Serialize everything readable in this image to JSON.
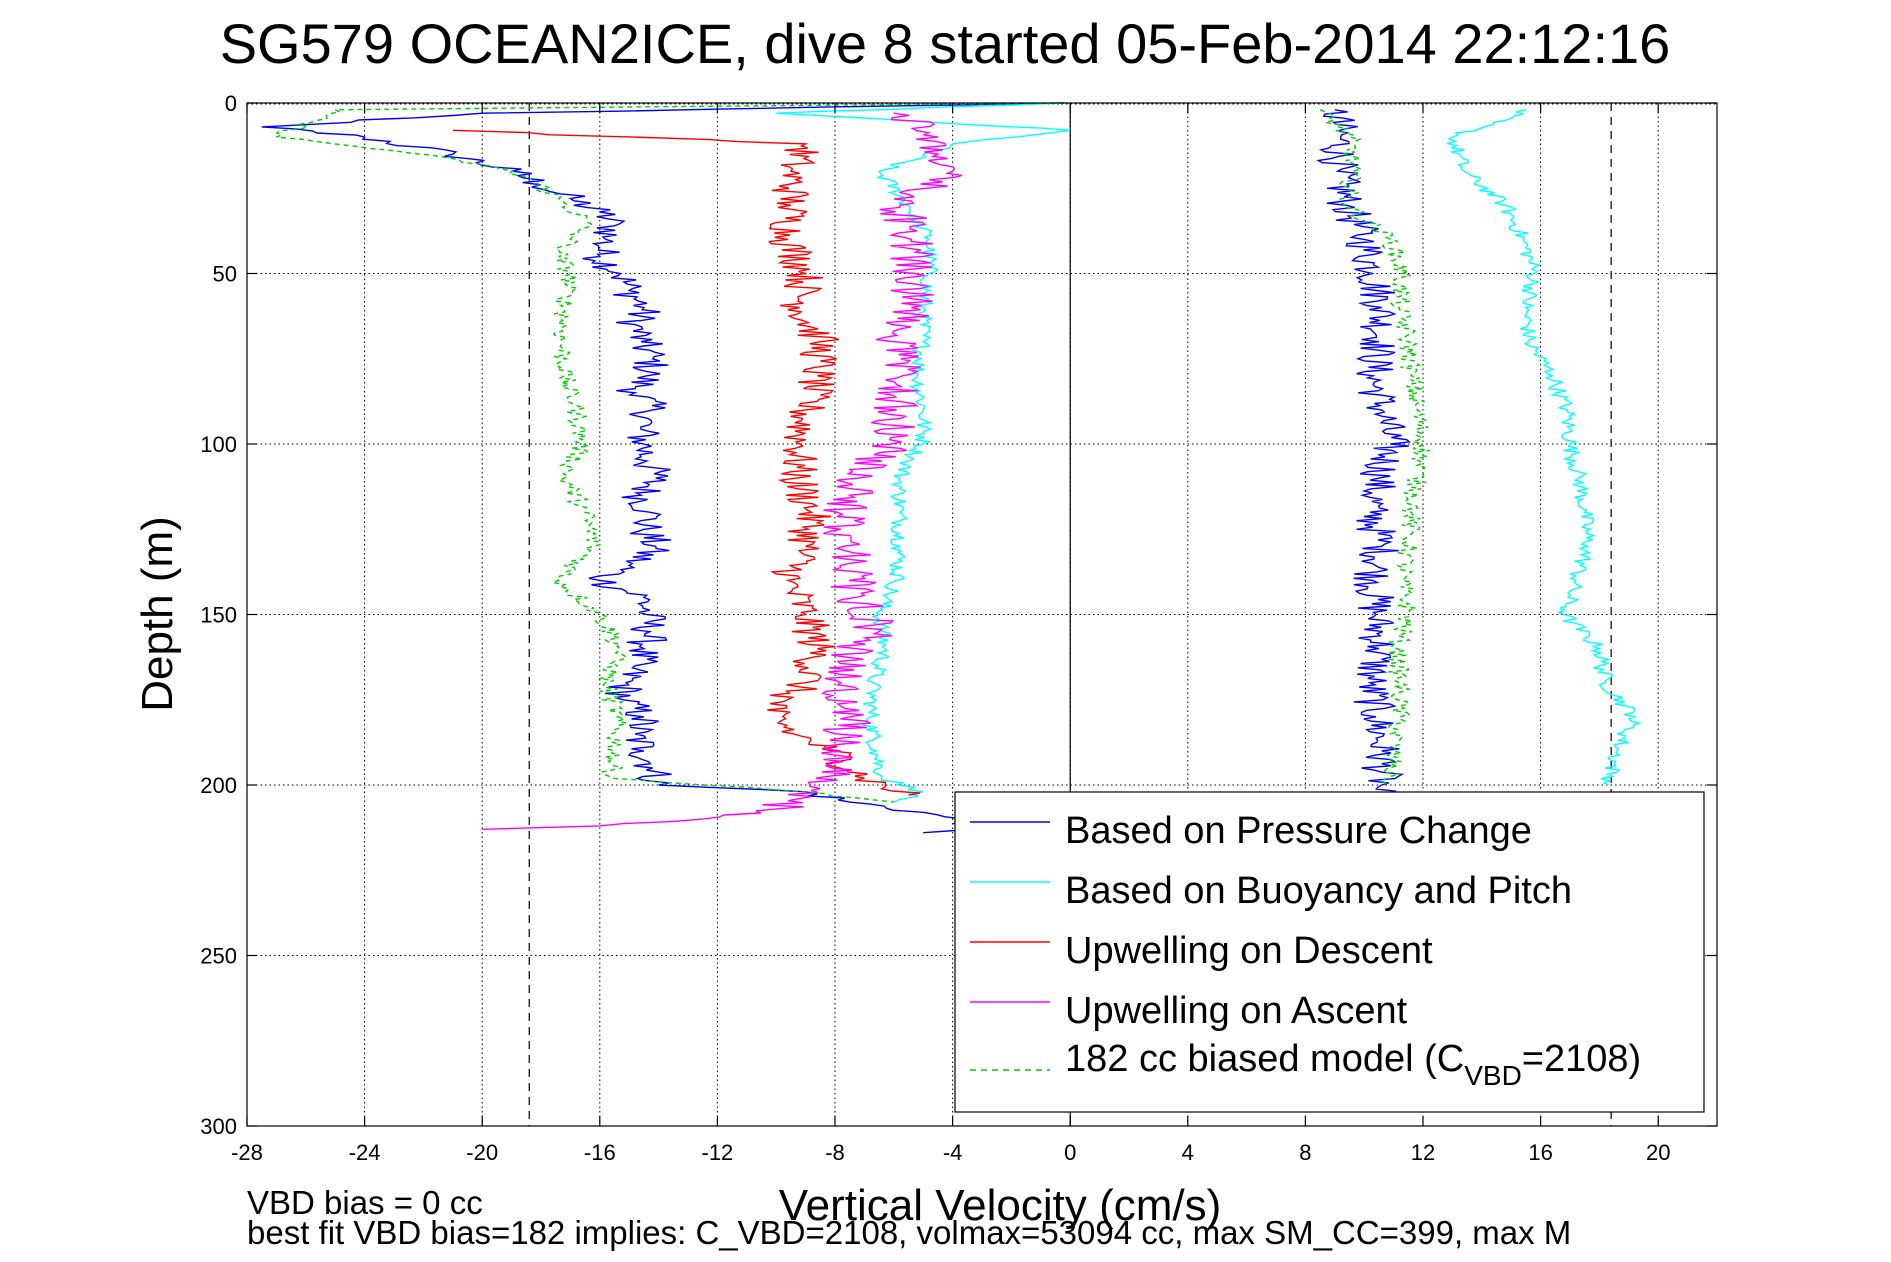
{
  "chart_data": {
    "type": "line",
    "title": "SG579 OCEAN2ICE, dive 8 started 05-Feb-2014 22:12:16",
    "xlabel": "Vertical Velocity (cm/s)",
    "ylabel": "Depth (m)",
    "xlim": [
      -28,
      22
    ],
    "ylim": [
      0,
      300
    ],
    "y_reversed": true,
    "xticks": [
      -28,
      -24,
      -20,
      -16,
      -12,
      -8,
      -4,
      0,
      4,
      8,
      12,
      16,
      20
    ],
    "yticks": [
      0,
      50,
      100,
      150,
      200,
      250,
      300
    ],
    "grid": true,
    "legend_position": "lower-right",
    "reference_lines": {
      "vertical_solid": [
        0
      ],
      "vertical_dashed": [
        -18.4,
        18.4
      ]
    },
    "series": [
      {
        "name": "Based on Pressure Change",
        "color": "#0000ff",
        "dashed": false,
        "points": [
          [
            -0.2,
            0
          ],
          [
            -20,
            3
          ],
          [
            -27.5,
            7
          ],
          [
            -24,
            10
          ],
          [
            -21,
            15
          ],
          [
            -19,
            20
          ],
          [
            -18,
            24
          ],
          [
            -17,
            28
          ],
          [
            -16,
            32
          ],
          [
            -15.5,
            36
          ],
          [
            -15.8,
            40
          ],
          [
            -16,
            45
          ],
          [
            -15.3,
            50
          ],
          [
            -15,
            55
          ],
          [
            -14.5,
            60
          ],
          [
            -14.8,
            65
          ],
          [
            -14.6,
            70
          ],
          [
            -14.2,
            75
          ],
          [
            -14.4,
            80
          ],
          [
            -14.8,
            85
          ],
          [
            -14.2,
            90
          ],
          [
            -14.6,
            95
          ],
          [
            -14.5,
            100
          ],
          [
            -14.4,
            105
          ],
          [
            -14.1,
            110
          ],
          [
            -14.6,
            115
          ],
          [
            -14.3,
            120
          ],
          [
            -14.5,
            125
          ],
          [
            -14.1,
            130
          ],
          [
            -14.9,
            135
          ],
          [
            -16,
            140
          ],
          [
            -14.5,
            145
          ],
          [
            -14.4,
            150
          ],
          [
            -14.3,
            155
          ],
          [
            -14.5,
            160
          ],
          [
            -14.8,
            165
          ],
          [
            -15.1,
            170
          ],
          [
            -15.2,
            175
          ],
          [
            -14.5,
            180
          ],
          [
            -14.8,
            185
          ],
          [
            -14.5,
            190
          ],
          [
            -14.2,
            195
          ],
          [
            -14,
            200
          ],
          [
            -9,
            202
          ],
          [
            -7.5,
            205
          ],
          [
            -5,
            208
          ],
          [
            -3,
            212
          ],
          [
            -5,
            214
          ]
        ],
        "ascent_points": [
          [
            9,
            2
          ],
          [
            9.2,
            10
          ],
          [
            9.1,
            20
          ],
          [
            9.4,
            30
          ],
          [
            10,
            40
          ],
          [
            10.3,
            50
          ],
          [
            10.6,
            60
          ],
          [
            10.5,
            70
          ],
          [
            10.3,
            80
          ],
          [
            10.6,
            90
          ],
          [
            10.9,
            100
          ],
          [
            10.5,
            110
          ],
          [
            10.2,
            120
          ],
          [
            10.6,
            130
          ],
          [
            10.3,
            140
          ],
          [
            10.4,
            150
          ],
          [
            10.5,
            160
          ],
          [
            10.2,
            170
          ],
          [
            10.4,
            180
          ],
          [
            10.6,
            190
          ],
          [
            10.6,
            200
          ],
          [
            10.2,
            203
          ]
        ]
      },
      {
        "name": "Based on Buoyancy and Pitch",
        "color": "#00ffff",
        "dashed": false,
        "points": [
          [
            -0.2,
            0
          ],
          [
            -10,
            3
          ],
          [
            0,
            8
          ],
          [
            -4,
            12
          ],
          [
            -6.5,
            20
          ],
          [
            -5.5,
            30
          ],
          [
            -4.8,
            40
          ],
          [
            -4.8,
            50
          ],
          [
            -5,
            60
          ],
          [
            -5,
            70
          ],
          [
            -5.2,
            80
          ],
          [
            -5,
            90
          ],
          [
            -5,
            100
          ],
          [
            -5.5,
            105
          ],
          [
            -5.8,
            110
          ],
          [
            -5.8,
            120
          ],
          [
            -5.8,
            130
          ],
          [
            -5.9,
            140
          ],
          [
            -6.5,
            150
          ],
          [
            -6.3,
            160
          ],
          [
            -6.7,
            170
          ],
          [
            -6.8,
            180
          ],
          [
            -6.6,
            190
          ],
          [
            -6.4,
            198
          ],
          [
            -5,
            202
          ],
          [
            -6,
            205
          ]
        ],
        "ascent_points": [
          [
            15.5,
            2
          ],
          [
            13,
            10
          ],
          [
            13.4,
            20
          ],
          [
            14.8,
            30
          ],
          [
            15.4,
            40
          ],
          [
            15.8,
            50
          ],
          [
            15.5,
            60
          ],
          [
            15.6,
            70
          ],
          [
            16.4,
            80
          ],
          [
            16.9,
            90
          ],
          [
            17,
            100
          ],
          [
            17.3,
            110
          ],
          [
            17.5,
            120
          ],
          [
            17.6,
            130
          ],
          [
            17.2,
            140
          ],
          [
            16.8,
            150
          ],
          [
            18,
            160
          ],
          [
            18.2,
            170
          ],
          [
            19.2,
            180
          ],
          [
            18.6,
            190
          ],
          [
            18.3,
            200
          ]
        ]
      },
      {
        "name": "Upwelling on Descent",
        "color": "#ff0000",
        "dashed": false,
        "points": [
          [
            -21,
            8
          ],
          [
            -9,
            12
          ],
          [
            -9.5,
            20
          ],
          [
            -9.5,
            30
          ],
          [
            -9.6,
            40
          ],
          [
            -9,
            50
          ],
          [
            -9.2,
            60
          ],
          [
            -8.5,
            70
          ],
          [
            -8.6,
            80
          ],
          [
            -9,
            90
          ],
          [
            -9.2,
            100
          ],
          [
            -9.3,
            110
          ],
          [
            -8.8,
            120
          ],
          [
            -9,
            130
          ],
          [
            -9.6,
            140
          ],
          [
            -9,
            150
          ],
          [
            -8.6,
            160
          ],
          [
            -9,
            170
          ],
          [
            -10.3,
            178
          ],
          [
            -9.4,
            185
          ],
          [
            -8.1,
            190
          ],
          [
            -7,
            198
          ],
          [
            -5.5,
            203
          ]
        ]
      },
      {
        "name": "Upwelling on Ascent",
        "color": "#ff00ff",
        "dashed": false,
        "points": [
          [
            -20,
            213
          ],
          [
            -16,
            212
          ],
          [
            -12.5,
            210
          ],
          [
            -10,
            207
          ],
          [
            -9.2,
            204
          ],
          [
            -8.5,
            201
          ],
          [
            -8.1,
            195
          ],
          [
            -7.8,
            190
          ],
          [
            -7.5,
            180
          ],
          [
            -7.8,
            170
          ],
          [
            -7.3,
            160
          ],
          [
            -6.5,
            155
          ],
          [
            -7.3,
            145
          ],
          [
            -7.5,
            135
          ],
          [
            -7.8,
            125
          ],
          [
            -7.5,
            115
          ],
          [
            -7.2,
            110
          ],
          [
            -6.1,
            100
          ],
          [
            -5.9,
            90
          ],
          [
            -5.7,
            80
          ],
          [
            -6,
            70
          ],
          [
            -5.4,
            60
          ],
          [
            -5.3,
            50
          ],
          [
            -5.4,
            40
          ],
          [
            -5.8,
            30
          ],
          [
            -4,
            20
          ],
          [
            -4.5,
            10
          ],
          [
            -6,
            3
          ]
        ]
      },
      {
        "name": "182 cc biased model (C_VBD=2108)",
        "color": "#00cc00",
        "dashed": true,
        "points": [
          [
            -0.2,
            0
          ],
          [
            -25,
            2
          ],
          [
            -27,
            10
          ],
          [
            -23,
            14
          ],
          [
            -20,
            18
          ],
          [
            -18.4,
            22
          ],
          [
            -17.4,
            28
          ],
          [
            -16.4,
            35
          ],
          [
            -17,
            40
          ],
          [
            -17.4,
            45
          ],
          [
            -17,
            50
          ],
          [
            -17.2,
            60
          ],
          [
            -17.3,
            70
          ],
          [
            -17.2,
            80
          ],
          [
            -16.8,
            90
          ],
          [
            -16.6,
            100
          ],
          [
            -17.2,
            110
          ],
          [
            -16.5,
            120
          ],
          [
            -16.2,
            130
          ],
          [
            -17.4,
            140
          ],
          [
            -16,
            150
          ],
          [
            -15.3,
            160
          ],
          [
            -15.8,
            170
          ],
          [
            -15.4,
            180
          ],
          [
            -15.5,
            190
          ],
          [
            -15.6,
            198
          ],
          [
            -9,
            202
          ],
          [
            -6,
            205
          ]
        ],
        "ascent_points": [
          [
            8.5,
            2
          ],
          [
            9.5,
            10
          ],
          [
            9.6,
            20
          ],
          [
            9.4,
            30
          ],
          [
            10.9,
            40
          ],
          [
            11.3,
            50
          ],
          [
            11.2,
            60
          ],
          [
            11.5,
            70
          ],
          [
            11.6,
            80
          ],
          [
            11.8,
            90
          ],
          [
            12,
            100
          ],
          [
            11.8,
            110
          ],
          [
            11.6,
            120
          ],
          [
            11.5,
            130
          ],
          [
            11.3,
            140
          ],
          [
            11.5,
            150
          ],
          [
            11.1,
            160
          ],
          [
            11.2,
            170
          ],
          [
            11.2,
            180
          ],
          [
            11,
            190
          ],
          [
            10.8,
            200
          ]
        ]
      }
    ],
    "legend_label_vbd": "182 cc biased model (C",
    "legend_label_vbd_sub": "VBD",
    "legend_label_vbd_tail": "=2108)",
    "footer_line1": "VBD bias = 0 cc",
    "footer_line2": "best fit VBD bias=182 implies: C_VBD=2108, volmax=53094 cc, max SM_CC=399, max M"
  }
}
